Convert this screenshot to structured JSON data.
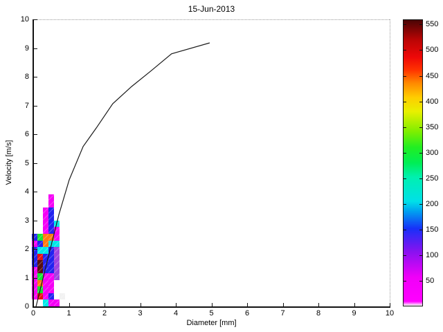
{
  "title": "15-Jun-2013",
  "xlabel": "Diameter [mm]",
  "ylabel": "Velocity [m/s]",
  "axes": {
    "x_ticks": [
      0,
      1,
      2,
      3,
      4,
      5,
      6,
      7,
      8,
      9,
      10
    ],
    "y_ticks": [
      0,
      1,
      2,
      3,
      4,
      5,
      6,
      7,
      8,
      9,
      10
    ],
    "xlim": [
      0,
      10
    ],
    "ylim": [
      0,
      10
    ]
  },
  "colorbar": {
    "ticks": [
      50,
      100,
      150,
      200,
      250,
      300,
      350,
      400,
      450,
      500,
      550
    ],
    "max_value": 560,
    "gradient_stops": [
      [
        0.0,
        "#ffffff"
      ],
      [
        0.015,
        "#ff00ff"
      ],
      [
        0.1,
        "#f000f8"
      ],
      [
        0.19,
        "#8812f0"
      ],
      [
        0.27,
        "#1830f8"
      ],
      [
        0.33,
        "#00a0f0"
      ],
      [
        0.365,
        "#00e0e8"
      ],
      [
        0.45,
        "#00f0b0"
      ],
      [
        0.5,
        "#00ee55"
      ],
      [
        0.555,
        "#22ee22"
      ],
      [
        0.61,
        "#7fee00"
      ],
      [
        0.68,
        "#e8f000"
      ],
      [
        0.73,
        "#ffcc00"
      ],
      [
        0.78,
        "#ff8800"
      ],
      [
        0.825,
        "#ff3300"
      ],
      [
        0.87,
        "#ee0808"
      ],
      [
        0.93,
        "#bb0505"
      ],
      [
        1.0,
        "#4a0505"
      ]
    ]
  },
  "chart_data": {
    "type": "heatmap",
    "title": "15-Jun-2013",
    "xlabel": "Diameter [mm]",
    "ylabel": "Velocity [m/s]",
    "xlim": [
      0,
      10
    ],
    "ylim": [
      0,
      10
    ],
    "grid": false,
    "colorbar_range": [
      0,
      560
    ],
    "diameter_bin_width_mm": 0.155,
    "velocity_bin_height_ms": 0.23,
    "palette": {
      "magenta": {
        "hex": "#f500f5",
        "count": 25
      },
      "purple": {
        "hex": "#a044e0",
        "count": 75
      },
      "blue": {
        "hex": "#2222f0",
        "count": 135
      },
      "cyan": {
        "hex": "#00e8e8",
        "count": 205
      },
      "green": {
        "hex": "#16e432",
        "count": 285
      },
      "orange": {
        "hex": "#ff7a10",
        "count": 420
      },
      "red": {
        "hex": "#ea1010",
        "count": 465
      },
      "maroon": {
        "hex": "#571010",
        "count": 545
      },
      "white": {
        "hex": "#f2f2f2",
        "count": 3
      }
    },
    "cells": [
      {
        "col": 2,
        "row": 0,
        "color": "cyan"
      },
      {
        "col": 3,
        "row": 0,
        "color": "magenta"
      },
      {
        "col": 4,
        "row": 0,
        "color": "magenta"
      },
      {
        "col": 0,
        "row": 1,
        "color": "magenta"
      },
      {
        "col": 1,
        "row": 1,
        "color": "red"
      },
      {
        "col": 2,
        "row": 1,
        "color": "magenta"
      },
      {
        "col": 3,
        "row": 1,
        "color": "blue"
      },
      {
        "col": 5,
        "row": 1,
        "color": "white"
      },
      {
        "col": 0,
        "row": 2,
        "color": "magenta"
      },
      {
        "col": 1,
        "row": 2,
        "color": "green"
      },
      {
        "col": 2,
        "row": 2,
        "color": "magenta"
      },
      {
        "col": 3,
        "row": 2,
        "color": "magenta"
      },
      {
        "col": 0,
        "row": 3,
        "color": "magenta"
      },
      {
        "col": 1,
        "row": 3,
        "color": "orange"
      },
      {
        "col": 2,
        "row": 3,
        "color": "magenta"
      },
      {
        "col": 3,
        "row": 3,
        "color": "magenta"
      },
      {
        "col": 0,
        "row": 4,
        "color": "magenta"
      },
      {
        "col": 1,
        "row": 4,
        "color": "green"
      },
      {
        "col": 2,
        "row": 4,
        "color": "magenta"
      },
      {
        "col": 3,
        "row": 4,
        "color": "magenta"
      },
      {
        "col": 4,
        "row": 4,
        "color": "purple"
      },
      {
        "col": 0,
        "row": 5,
        "color": "magenta"
      },
      {
        "col": 1,
        "row": 5,
        "color": "maroon"
      },
      {
        "col": 2,
        "row": 5,
        "color": "blue"
      },
      {
        "col": 3,
        "row": 5,
        "color": "blue"
      },
      {
        "col": 4,
        "row": 5,
        "color": "purple"
      },
      {
        "col": 0,
        "row": 6,
        "color": "blue"
      },
      {
        "col": 1,
        "row": 6,
        "color": "maroon"
      },
      {
        "col": 2,
        "row": 6,
        "color": "blue"
      },
      {
        "col": 3,
        "row": 6,
        "color": "blue"
      },
      {
        "col": 4,
        "row": 6,
        "color": "purple"
      },
      {
        "col": 0,
        "row": 7,
        "color": "blue"
      },
      {
        "col": 1,
        "row": 7,
        "color": "red"
      },
      {
        "col": 2,
        "row": 7,
        "color": "blue"
      },
      {
        "col": 3,
        "row": 7,
        "color": "blue"
      },
      {
        "col": 4,
        "row": 7,
        "color": "purple"
      },
      {
        "col": 0,
        "row": 8,
        "color": "blue"
      },
      {
        "col": 1,
        "row": 8,
        "color": "cyan"
      },
      {
        "col": 2,
        "row": 8,
        "color": "cyan"
      },
      {
        "col": 3,
        "row": 8,
        "color": "blue"
      },
      {
        "col": 4,
        "row": 8,
        "color": "purple"
      },
      {
        "col": 0,
        "row": 9,
        "color": "magenta"
      },
      {
        "col": 1,
        "row": 9,
        "color": "blue"
      },
      {
        "col": 2,
        "row": 9,
        "color": "orange"
      },
      {
        "col": 3,
        "row": 9,
        "color": "cyan"
      },
      {
        "col": 4,
        "row": 9,
        "color": "cyan"
      },
      {
        "col": 0,
        "row": 10,
        "color": "blue"
      },
      {
        "col": 1,
        "row": 10,
        "color": "green"
      },
      {
        "col": 2,
        "row": 10,
        "color": "orange"
      },
      {
        "col": 3,
        "row": 10,
        "color": "orange"
      },
      {
        "col": 4,
        "row": 10,
        "color": "magenta"
      },
      {
        "col": 2,
        "row": 11,
        "color": "magenta"
      },
      {
        "col": 3,
        "row": 11,
        "color": "blue"
      },
      {
        "col": 4,
        "row": 11,
        "color": "magenta"
      },
      {
        "col": 2,
        "row": 12,
        "color": "magenta"
      },
      {
        "col": 3,
        "row": 12,
        "color": "blue"
      },
      {
        "col": 4,
        "row": 12,
        "color": "cyan"
      },
      {
        "col": 2,
        "row": 13,
        "color": "magenta"
      },
      {
        "col": 3,
        "row": 13,
        "color": "blue"
      },
      {
        "col": 2,
        "row": 14,
        "color": "magenta"
      },
      {
        "col": 3,
        "row": 14,
        "color": "blue"
      },
      {
        "col": 3,
        "row": 15,
        "color": "magenta"
      },
      {
        "col": 3,
        "row": 16,
        "color": "magenta"
      }
    ],
    "curve": {
      "name": "terminal-velocity-reference-curve",
      "points": [
        [
          0.08,
          0
        ],
        [
          0.43,
          1.76
        ],
        [
          0.72,
          3.2
        ],
        [
          1.01,
          4.41
        ],
        [
          1.4,
          5.57
        ],
        [
          1.77,
          6.22
        ],
        [
          2.23,
          7.06
        ],
        [
          2.76,
          7.66
        ],
        [
          3.3,
          8.2
        ],
        [
          3.88,
          8.8
        ],
        [
          4.95,
          9.18
        ]
      ]
    }
  }
}
